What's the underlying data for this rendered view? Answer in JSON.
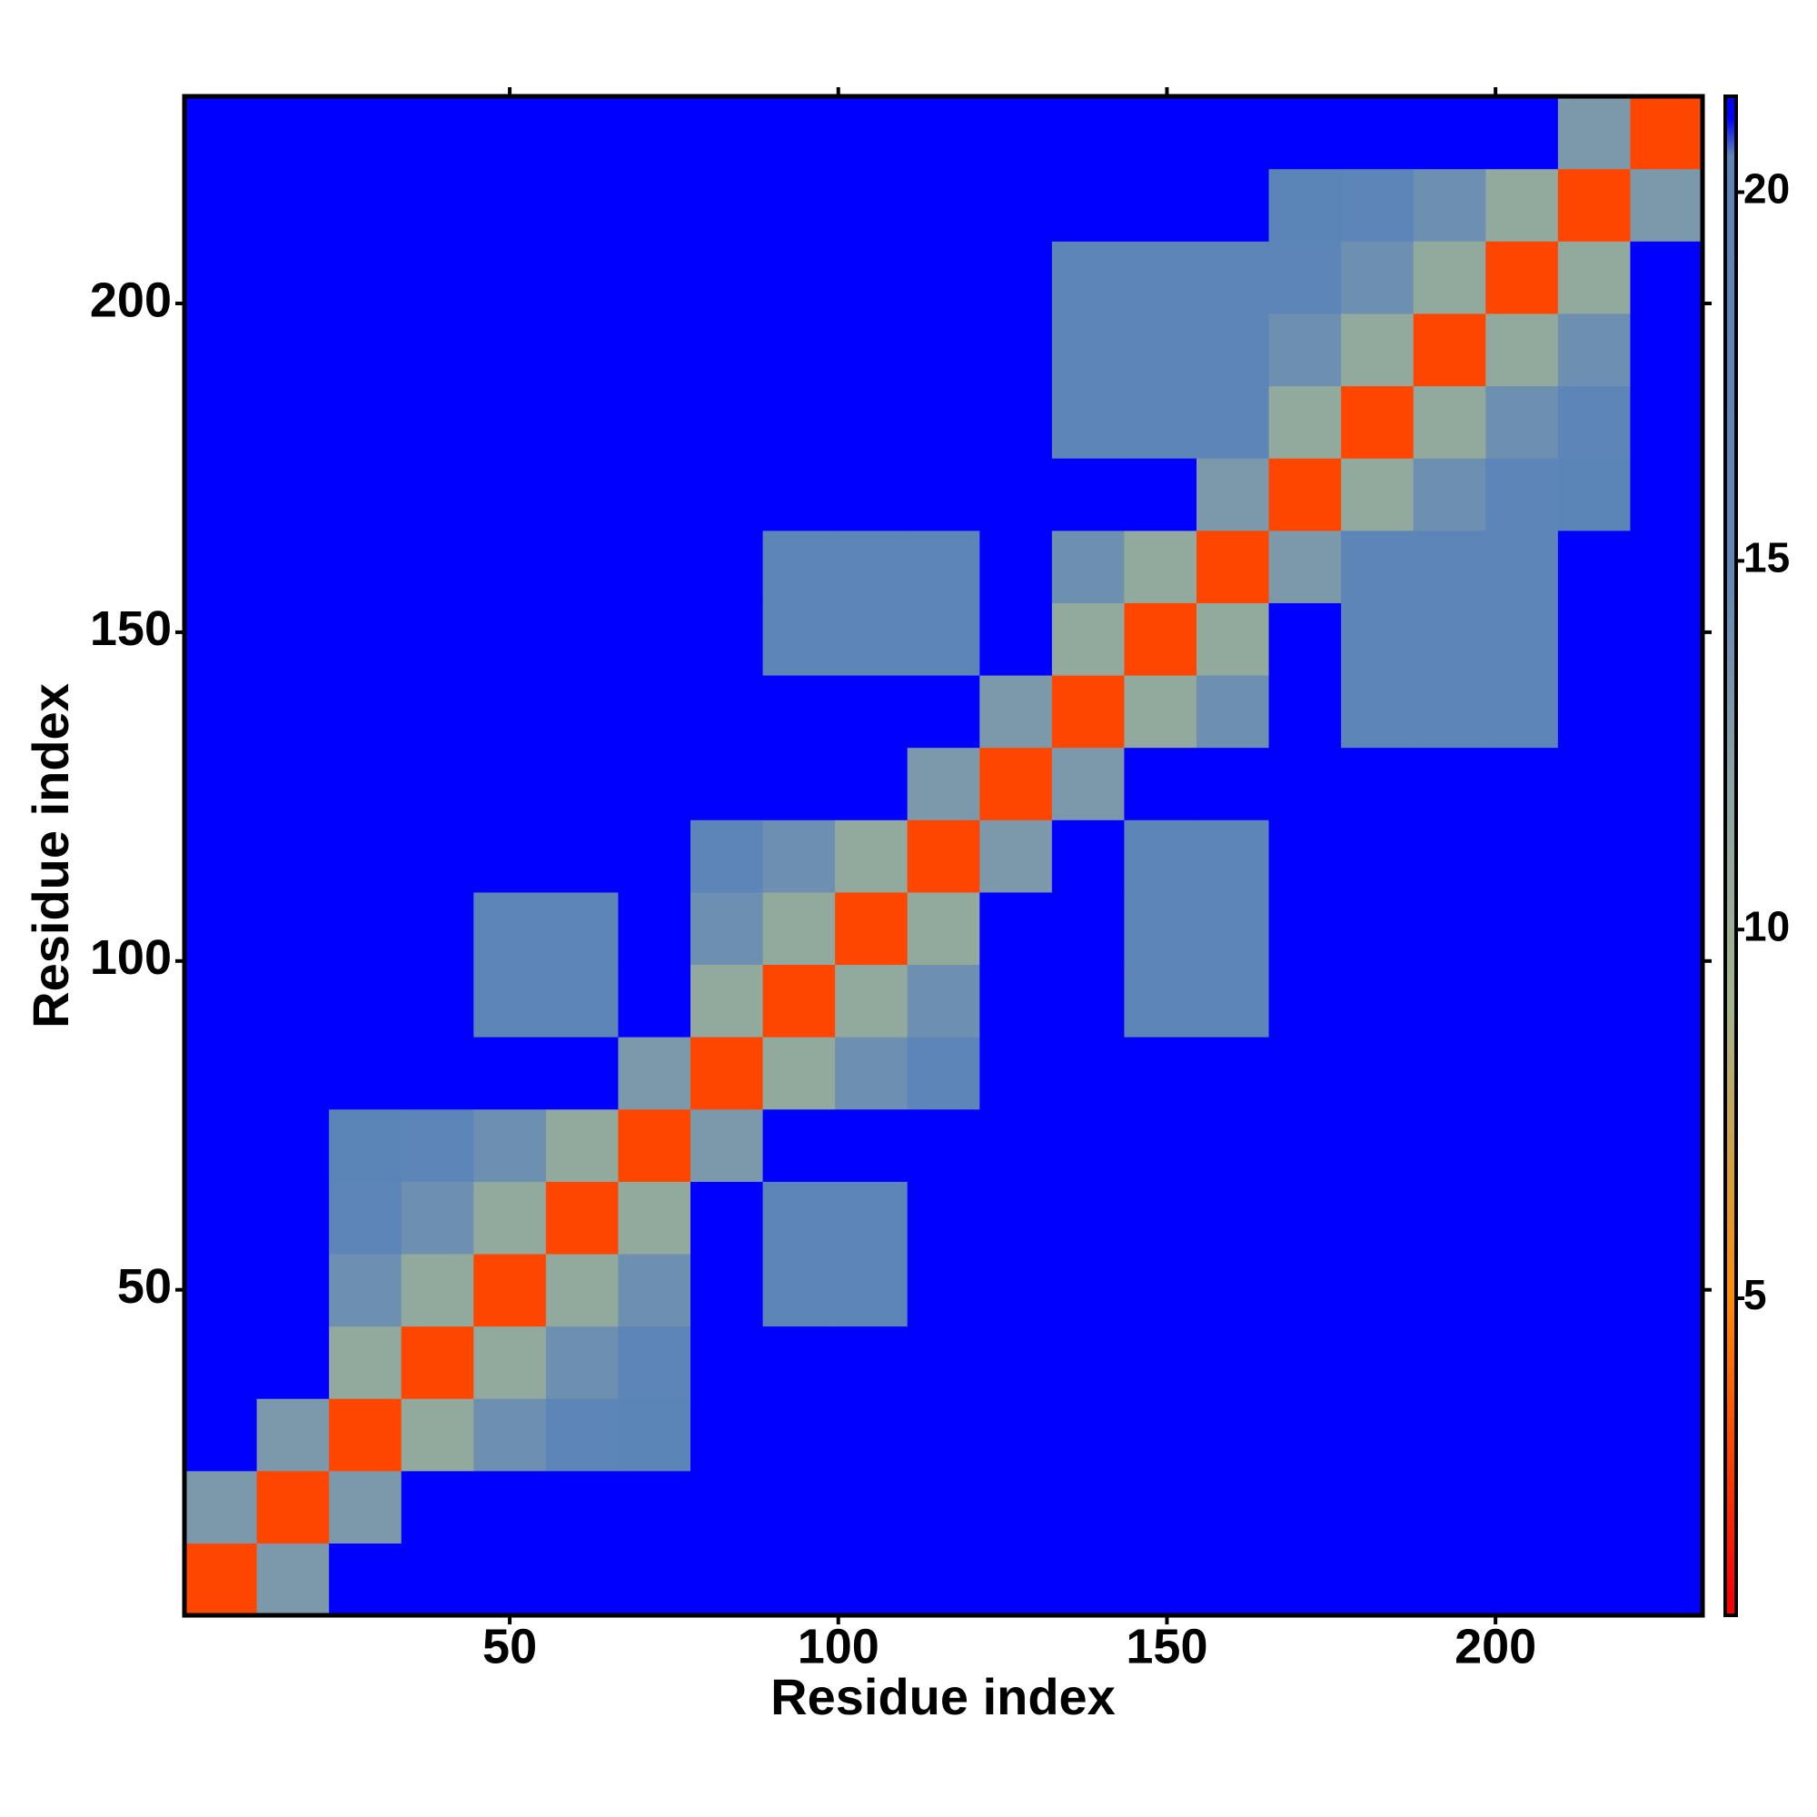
{
  "chart_data": {
    "type": "heatmap",
    "xlabel": "Residue index",
    "ylabel": "Residue index",
    "bins": [
      0.5,
      11.5,
      22.5,
      33.5,
      44.5,
      55.5,
      66.5,
      77.5,
      88.5,
      99.5,
      110.5,
      121.5,
      132.5,
      143.5,
      154.5,
      165.5,
      176.5,
      187.5,
      198.5,
      209.5,
      220.5,
      231.5
    ],
    "xlim": [
      0.5,
      231.5
    ],
    "ylim": [
      0.5,
      231.5
    ],
    "xticks": [
      50,
      100,
      150,
      200
    ],
    "yticks": [
      50,
      100,
      150,
      200
    ],
    "colorlim": [
      0.7,
      21.3
    ],
    "colorticks": [
      5,
      10,
      15,
      20
    ],
    "colorscale": [
      {
        "value": 1,
        "color": "#ff0000"
      },
      {
        "value": 5,
        "color": "#ff8c00"
      },
      {
        "value": 9,
        "color": "#a3b68a"
      },
      {
        "value": 12,
        "color": "#8aa3a6"
      },
      {
        "value": 15,
        "color": "#5f86b6"
      },
      {
        "value": 20.5,
        "color": "#5b84b8"
      },
      {
        "value": 21,
        "color": "#0000ff"
      }
    ],
    "z": [
      [
        3,
        13,
        21,
        21,
        21,
        21,
        21,
        21,
        21,
        21,
        21,
        21,
        21,
        21,
        21,
        21,
        21,
        21,
        21,
        21,
        21
      ],
      [
        13,
        3,
        13,
        21,
        21,
        21,
        21,
        21,
        21,
        21,
        21,
        21,
        21,
        21,
        21,
        21,
        21,
        21,
        21,
        21,
        21
      ],
      [
        21,
        13,
        3,
        11,
        14,
        17,
        19,
        21,
        21,
        21,
        21,
        21,
        21,
        21,
        21,
        21,
        21,
        21,
        21,
        21,
        21
      ],
      [
        21,
        21,
        11,
        3,
        11,
        14,
        17,
        21,
        21,
        21,
        21,
        21,
        21,
        21,
        21,
        21,
        21,
        21,
        21,
        21,
        21
      ],
      [
        21,
        21,
        14,
        11,
        3,
        11,
        14,
        21,
        18,
        18,
        21,
        21,
        21,
        21,
        21,
        21,
        21,
        21,
        21,
        21,
        21
      ],
      [
        21,
        21,
        17,
        14,
        11,
        3,
        11,
        21,
        18,
        18,
        21,
        21,
        21,
        21,
        21,
        21,
        21,
        21,
        21,
        21,
        21
      ],
      [
        21,
        21,
        19,
        17,
        14,
        11,
        3,
        13,
        21,
        21,
        21,
        21,
        21,
        21,
        21,
        21,
        21,
        21,
        21,
        21,
        21
      ],
      [
        21,
        21,
        21,
        21,
        21,
        21,
        13,
        3,
        11,
        14,
        17,
        21,
        21,
        21,
        21,
        21,
        21,
        21,
        21,
        21,
        21
      ],
      [
        21,
        21,
        21,
        21,
        18,
        18,
        21,
        11,
        3,
        11,
        14,
        21,
        21,
        18,
        18,
        21,
        21,
        21,
        21,
        21,
        21
      ],
      [
        21,
        21,
        21,
        21,
        18,
        18,
        21,
        14,
        11,
        3,
        11,
        21,
        21,
        18,
        18,
        21,
        21,
        21,
        21,
        21,
        21
      ],
      [
        21,
        21,
        21,
        21,
        21,
        21,
        21,
        17,
        14,
        11,
        3,
        13,
        21,
        18,
        18,
        21,
        21,
        21,
        21,
        21,
        21
      ],
      [
        21,
        21,
        21,
        21,
        21,
        21,
        21,
        21,
        21,
        21,
        13,
        3,
        13,
        21,
        21,
        21,
        21,
        21,
        21,
        21,
        21
      ],
      [
        21,
        21,
        21,
        21,
        21,
        21,
        21,
        21,
        21,
        21,
        21,
        13,
        3,
        11,
        14,
        21,
        18,
        18,
        18,
        21,
        21
      ],
      [
        21,
        21,
        21,
        21,
        21,
        21,
        21,
        21,
        18,
        18,
        18,
        21,
        11,
        3,
        11,
        21,
        18,
        18,
        18,
        21,
        21
      ],
      [
        21,
        21,
        21,
        21,
        21,
        21,
        21,
        21,
        18,
        18,
        18,
        21,
        14,
        11,
        3,
        13,
        18,
        18,
        18,
        21,
        21
      ],
      [
        21,
        21,
        21,
        21,
        21,
        21,
        21,
        21,
        21,
        21,
        21,
        21,
        21,
        21,
        13,
        3,
        11,
        14,
        17,
        19,
        21
      ],
      [
        21,
        21,
        21,
        21,
        21,
        21,
        21,
        21,
        21,
        21,
        21,
        21,
        18,
        18,
        18,
        11,
        3,
        11,
        14,
        17,
        21
      ],
      [
        21,
        21,
        21,
        21,
        21,
        21,
        21,
        21,
        21,
        21,
        21,
        21,
        18,
        18,
        18,
        14,
        11,
        3,
        11,
        14,
        21
      ],
      [
        21,
        21,
        21,
        21,
        21,
        21,
        21,
        21,
        21,
        21,
        21,
        21,
        18,
        18,
        18,
        17,
        14,
        11,
        3,
        11,
        21
      ],
      [
        21,
        21,
        21,
        21,
        21,
        21,
        21,
        21,
        21,
        21,
        21,
        21,
        21,
        21,
        21,
        19,
        17,
        14,
        11,
        3,
        13
      ],
      [
        21,
        21,
        21,
        21,
        21,
        21,
        21,
        21,
        21,
        21,
        21,
        21,
        21,
        21,
        21,
        21,
        21,
        21,
        21,
        13,
        3
      ]
    ]
  }
}
